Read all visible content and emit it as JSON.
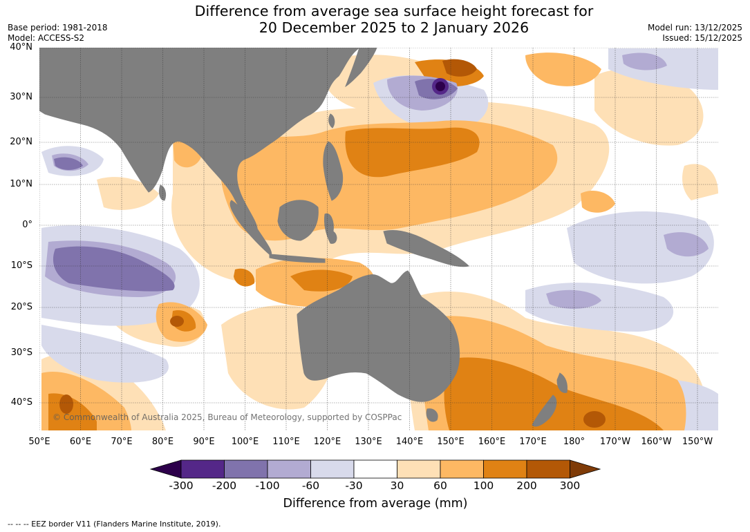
{
  "header": {
    "title_line1": "Difference from average sea surface height forecast for",
    "title_line2": "20 December 2025 to 2 January 2026",
    "base_period": "Base period: 1981-2018",
    "model": "Model: ACCESS-S2",
    "model_run": "Model run: 13/12/2025",
    "issued": "Issued: 15/12/2025"
  },
  "map": {
    "lat_labels": [
      "40°N",
      "30°N",
      "20°N",
      "10°N",
      "0°",
      "10°S",
      "20°S",
      "30°S",
      "40°S"
    ],
    "lon_labels": [
      "50°E",
      "60°E",
      "70°E",
      "80°E",
      "90°E",
      "100°E",
      "110°E",
      "120°E",
      "130°E",
      "140°E",
      "150°E",
      "160°E",
      "170°E",
      "180°",
      "170°W",
      "160°W",
      "150°W"
    ],
    "copyright": "© Commonwealth of Australia 2025, Bureau of Meteorology, supported by COSPPac",
    "land_color": "#7f7f7f",
    "lon_range": [
      50,
      215
    ],
    "lat_range": [
      -46,
      40
    ]
  },
  "colorbar": {
    "ticks": [
      "-300",
      "-200",
      "-100",
      "-60",
      "-30",
      "30",
      "60",
      "100",
      "200",
      "300"
    ],
    "colors": [
      "#2d004b",
      "#542788",
      "#8073ac",
      "#b2abd2",
      "#d8daeb",
      "#ffffff",
      "#fee0b6",
      "#fdb863",
      "#e08214",
      "#b35806",
      "#7f3b08"
    ],
    "title": "Difference from average (mm)"
  },
  "footer": {
    "eez_note": "--  --  -- EEZ border V11 (Flanders Marine Institute, 2019)."
  }
}
